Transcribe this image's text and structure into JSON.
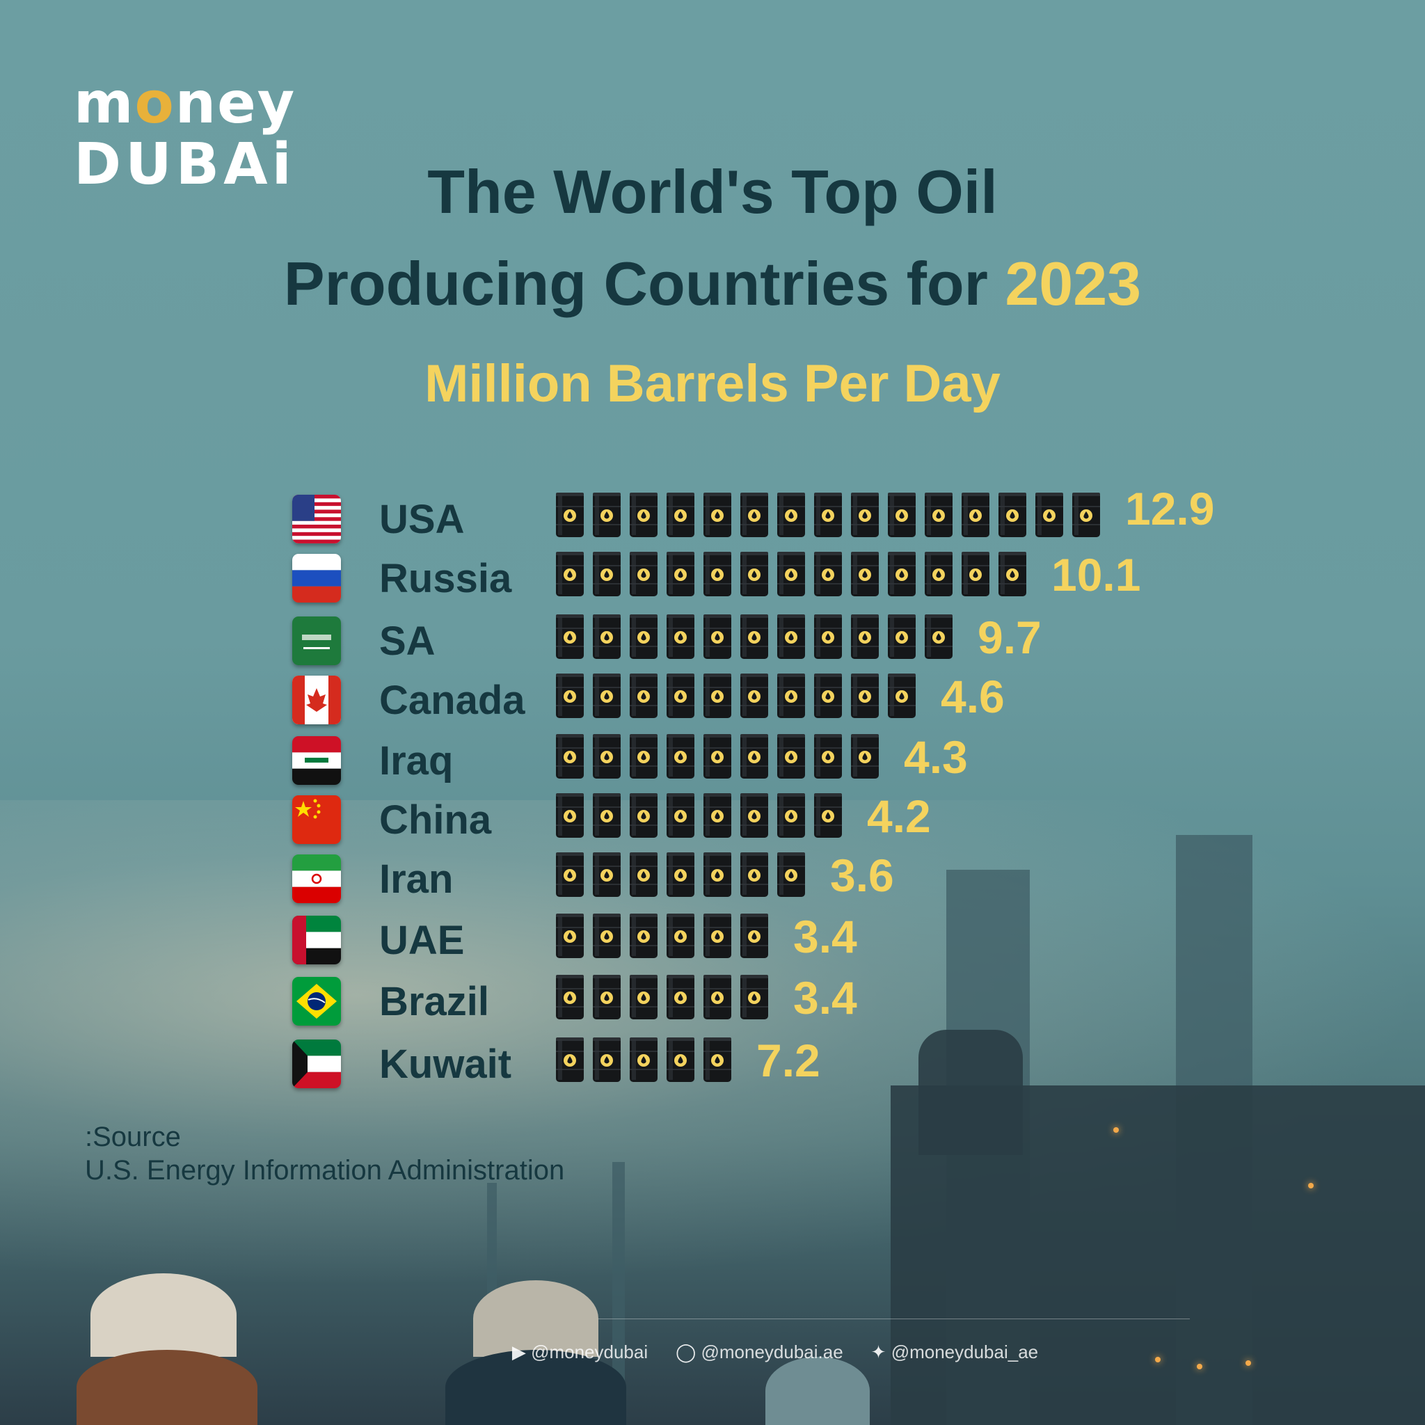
{
  "logo": {
    "line1_prefix": "m",
    "line1_o": "o",
    "line1_suffix": "ney",
    "line2": "DUBAi"
  },
  "title": {
    "line1": "The World's Top Oil",
    "line2_text": "Producing Countries for ",
    "line2_year": "2023"
  },
  "subtitle": "Million Barrels Per Day",
  "chart_data": {
    "type": "bar",
    "title": "The World's Top Oil Producing Countries for 2023",
    "ylabel": "Million Barrels Per Day",
    "categories": [
      "USA",
      "Russia",
      "SA",
      "Canada",
      "Iraq",
      "China",
      "Iran",
      "UAE",
      "Brazil",
      "Kuwait"
    ],
    "values": [
      12.9,
      10.1,
      9.7,
      4.6,
      4.3,
      4.2,
      3.6,
      3.4,
      3.4,
      7.2
    ],
    "value_labels": [
      "12.9",
      "10.1",
      "9.7",
      "4.6",
      "4.3",
      "4.2",
      "3.6",
      "3.4",
      "3.4",
      "7.2"
    ],
    "barrel_counts": [
      15,
      13,
      11,
      10,
      9,
      8,
      7,
      6,
      6,
      5
    ],
    "flags": [
      "usa",
      "russia",
      "saudi",
      "canada",
      "iraq",
      "china",
      "iran",
      "uae",
      "brazil",
      "kuwait"
    ],
    "bar_icon": "oil-barrel-icon",
    "value_color": "#f4d35e"
  },
  "source": {
    "label": ":Source",
    "text": "U.S. Energy Information Administration"
  },
  "footer": {
    "facebook_youtube": "@moneydubai",
    "instagram_tiktok": "@moneydubai.ae",
    "twitter": "@moneydubai_ae"
  },
  "colors": {
    "title": "#163840",
    "accent": "#f4d35e",
    "background": "#6c9ea2"
  }
}
